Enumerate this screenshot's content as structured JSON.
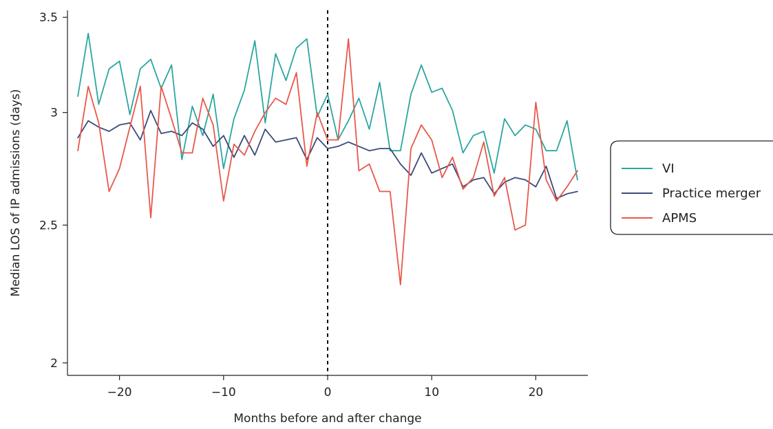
{
  "chart_data": {
    "type": "line",
    "xlabel": "Months before and after change",
    "ylabel": "Median LOS of IP admissions (days)",
    "xlim": [
      -25,
      25
    ],
    "ylim": [
      1.96,
      3.54
    ],
    "y_scale": "log",
    "x_ticks": [
      -20,
      -10,
      0,
      10,
      20
    ],
    "x_tick_labels": [
      "−20",
      "−10",
      "0",
      "10",
      "20"
    ],
    "y_ticks": [
      2,
      2.5,
      3,
      3.5
    ],
    "y_tick_labels": [
      "2",
      "2.5",
      "3",
      "3.5"
    ],
    "grid": false,
    "legend_position": "right",
    "reference_line": {
      "x": 0,
      "style": "dashed"
    },
    "x": [
      -24,
      -23,
      -22,
      -21,
      -20,
      -19,
      -18,
      -17,
      -16,
      -15,
      -14,
      -13,
      -12,
      -11,
      -10,
      -9,
      -8,
      -7,
      -6,
      -5,
      -4,
      -3,
      -2,
      -1,
      0,
      1,
      2,
      3,
      4,
      5,
      6,
      7,
      8,
      9,
      10,
      11,
      12,
      13,
      14,
      15,
      16,
      17,
      18,
      19,
      20,
      21,
      22,
      23,
      24
    ],
    "series": [
      {
        "name": "VI",
        "color": "#2aa6a0",
        "values": [
          3.08,
          3.41,
          3.04,
          3.22,
          3.26,
          2.99,
          3.22,
          3.27,
          3.12,
          3.24,
          2.78,
          3.03,
          2.89,
          3.09,
          2.74,
          2.97,
          3.11,
          3.37,
          2.95,
          3.3,
          3.16,
          3.33,
          3.38,
          2.98,
          3.09,
          2.87,
          2.96,
          3.07,
          2.92,
          3.15,
          2.82,
          2.82,
          3.09,
          3.24,
          3.1,
          3.12,
          3.01,
          2.81,
          2.89,
          2.91,
          2.72,
          2.97,
          2.89,
          2.94,
          2.92,
          2.82,
          2.82,
          2.96,
          2.69
        ]
      },
      {
        "name": "Practice merger",
        "color": "#3a4a7a",
        "values": [
          2.88,
          2.96,
          2.93,
          2.91,
          2.94,
          2.95,
          2.87,
          3.01,
          2.9,
          2.91,
          2.89,
          2.95,
          2.92,
          2.84,
          2.89,
          2.79,
          2.89,
          2.8,
          2.92,
          2.86,
          2.87,
          2.88,
          2.78,
          2.88,
          2.83,
          2.84,
          2.86,
          2.84,
          2.82,
          2.83,
          2.83,
          2.76,
          2.71,
          2.81,
          2.72,
          2.74,
          2.76,
          2.66,
          2.69,
          2.7,
          2.63,
          2.68,
          2.7,
          2.69,
          2.66,
          2.75,
          2.61,
          2.63,
          2.64
        ]
      },
      {
        "name": "APMS",
        "color": "#e8574a",
        "values": [
          2.82,
          3.13,
          2.95,
          2.64,
          2.74,
          2.93,
          3.13,
          2.53,
          3.13,
          2.97,
          2.81,
          2.81,
          3.07,
          2.94,
          2.6,
          2.85,
          2.8,
          2.91,
          3.0,
          3.07,
          3.04,
          3.2,
          2.75,
          3.0,
          2.87,
          2.87,
          3.38,
          2.73,
          2.76,
          2.64,
          2.64,
          2.27,
          2.83,
          2.94,
          2.87,
          2.7,
          2.79,
          2.65,
          2.7,
          2.86,
          2.62,
          2.7,
          2.48,
          2.5,
          3.05,
          2.69,
          2.6,
          2.66,
          2.73
        ]
      }
    ]
  }
}
